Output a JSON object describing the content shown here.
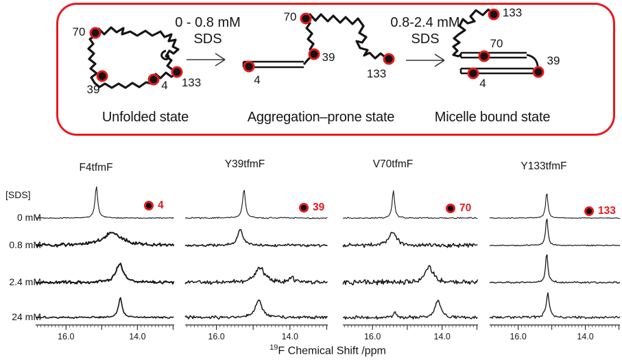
{
  "colors": {
    "accent_red": "#e8191c",
    "ink": "#141414"
  },
  "scheme": {
    "states": [
      {
        "name": "Unfolded state",
        "markers": [
          {
            "label": "70"
          },
          {
            "label": "39"
          },
          {
            "label": "4"
          },
          {
            "label": "133"
          }
        ]
      },
      {
        "name": "Aggregation–prone state",
        "markers": [
          {
            "label": "4"
          },
          {
            "label": "70"
          },
          {
            "label": "39"
          },
          {
            "label": "133"
          }
        ]
      },
      {
        "name": "Micelle bound state",
        "markers": [
          {
            "label": "133"
          },
          {
            "label": "70"
          },
          {
            "label": "39"
          },
          {
            "label": "4"
          }
        ]
      }
    ],
    "arrows": [
      {
        "line1": "0 - 0.8 mM",
        "line2": "SDS"
      },
      {
        "line1": "0.8-2.4 mM",
        "line2": "SDS"
      }
    ]
  },
  "spectra": {
    "sds_header": "[SDS]",
    "row_labels": [
      "0 mM",
      "0.8 mM",
      "2.4 mM",
      "24 mM"
    ],
    "columns": [
      {
        "title": "F4tfmF",
        "marker": "4"
      },
      {
        "title": "Y39tfmF",
        "marker": "39"
      },
      {
        "title": "V70tfmF",
        "marker": "70"
      },
      {
        "title": "Y133tfmF",
        "marker": "133"
      }
    ],
    "xlabel_sup": "19",
    "xlabel_main": "F Chemical Shift /ppm"
  },
  "chart_data": {
    "type": "line",
    "title": "19F NMR spectra of tfmF-labeled residues at increasing SDS concentration",
    "xlabel": "19F Chemical Shift /ppm",
    "x_axis": {
      "range": [
        16.85,
        12.97
      ],
      "tick_values": [
        16.0,
        14.0
      ],
      "tick_labels": [
        "16.0",
        "14.0"
      ],
      "unit": "ppm",
      "direction": "decreasing"
    },
    "sds_rows": [
      "0 mM",
      "0.8 mM",
      "2.4 mM",
      "24 mM"
    ],
    "columns": [
      {
        "title": "F4tfmF",
        "residue": "4",
        "spectra": [
          {
            "sds": "0 mM",
            "peaks": [
              {
                "ppm": 15.15,
                "width": 0.045,
                "amp": 1.0
              }
            ],
            "noise": 0.018,
            "lw": 1.1
          },
          {
            "sds": "0.8 mM",
            "peaks": [
              {
                "ppm": 14.7,
                "width": 0.3,
                "amp": 0.42
              }
            ],
            "noise": 0.06,
            "lw": 2.0
          },
          {
            "sds": "2.4 mM",
            "peaks": [
              {
                "ppm": 14.5,
                "width": 0.12,
                "amp": 0.6
              }
            ],
            "noise": 0.055,
            "lw": 2.0
          },
          {
            "sds": "24 mM",
            "peaks": [
              {
                "ppm": 14.48,
                "width": 0.06,
                "amp": 0.62
              }
            ],
            "noise": 0.035,
            "lw": 1.6
          }
        ]
      },
      {
        "title": "Y39tfmF",
        "residue": "39",
        "spectra": [
          {
            "sds": "0 mM",
            "peaks": [
              {
                "ppm": 15.25,
                "width": 0.045,
                "amp": 0.92
              }
            ],
            "noise": 0.025,
            "lw": 1.1
          },
          {
            "sds": "0.8 mM",
            "peaks": [
              {
                "ppm": 15.35,
                "width": 0.09,
                "amp": 0.5
              }
            ],
            "noise": 0.05,
            "lw": 1.5
          },
          {
            "sds": "2.4 mM",
            "peaks": [
              {
                "ppm": 14.82,
                "width": 0.15,
                "amp": 0.5
              },
              {
                "ppm": 13.95,
                "width": 0.06,
                "amp": 0.18
              }
            ],
            "noise": 0.085,
            "lw": 1.5
          },
          {
            "sds": "24 mM",
            "peaks": [
              {
                "ppm": 14.85,
                "width": 0.11,
                "amp": 0.55
              }
            ],
            "noise": 0.06,
            "lw": 1.5
          }
        ]
      },
      {
        "title": "V70tfmF",
        "residue": "70",
        "spectra": [
          {
            "sds": "0 mM",
            "peaks": [
              {
                "ppm": 15.4,
                "width": 0.04,
                "amp": 0.88
              }
            ],
            "noise": 0.025,
            "lw": 1.1
          },
          {
            "sds": "0.8 mM",
            "peaks": [
              {
                "ppm": 15.42,
                "width": 0.13,
                "amp": 0.42
              }
            ],
            "noise": 0.075,
            "lw": 1.5
          },
          {
            "sds": "2.4 mM",
            "peaks": [
              {
                "ppm": 14.38,
                "width": 0.13,
                "amp": 0.52
              }
            ],
            "noise": 0.1,
            "lw": 1.5
          },
          {
            "sds": "24 mM",
            "peaks": [
              {
                "ppm": 14.12,
                "width": 0.09,
                "amp": 0.55
              },
              {
                "ppm": 15.35,
                "width": 0.045,
                "amp": 0.16
              }
            ],
            "noise": 0.065,
            "lw": 1.4
          }
        ]
      },
      {
        "title": "Y133tfmF",
        "residue": "133",
        "spectra": [
          {
            "sds": "0 mM",
            "peaks": [
              {
                "ppm": 15.15,
                "width": 0.04,
                "amp": 0.82
              }
            ],
            "noise": 0.018,
            "lw": 1.1
          },
          {
            "sds": "0.8 mM",
            "peaks": [
              {
                "ppm": 15.15,
                "width": 0.04,
                "amp": 0.88
              }
            ],
            "noise": 0.02,
            "lw": 1.2
          },
          {
            "sds": "2.4 mM",
            "peaks": [
              {
                "ppm": 15.15,
                "width": 0.04,
                "amp": 0.95
              }
            ],
            "noise": 0.035,
            "lw": 1.3
          },
          {
            "sds": "24 mM",
            "peaks": [
              {
                "ppm": 15.12,
                "width": 0.055,
                "amp": 0.78
              }
            ],
            "noise": 0.05,
            "lw": 1.3
          }
        ]
      }
    ]
  }
}
